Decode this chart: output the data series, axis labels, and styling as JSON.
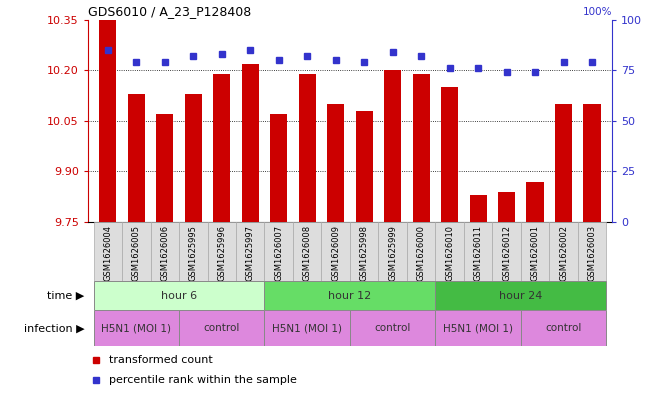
{
  "title": "GDS6010 / A_23_P128408",
  "samples": [
    "GSM1626004",
    "GSM1626005",
    "GSM1626006",
    "GSM1625995",
    "GSM1625996",
    "GSM1625997",
    "GSM1626007",
    "GSM1626008",
    "GSM1626009",
    "GSM1625998",
    "GSM1625999",
    "GSM1626000",
    "GSM1626010",
    "GSM1626011",
    "GSM1626012",
    "GSM1626001",
    "GSM1626002",
    "GSM1626003"
  ],
  "transformed_count": [
    10.35,
    10.13,
    10.07,
    10.13,
    10.19,
    10.22,
    10.07,
    10.19,
    10.1,
    10.08,
    10.2,
    10.19,
    10.15,
    9.83,
    9.84,
    9.87,
    10.1,
    10.1
  ],
  "percentile_rank": [
    85,
    79,
    79,
    82,
    83,
    85,
    80,
    82,
    80,
    79,
    84,
    82,
    76,
    76,
    74,
    74,
    79,
    79
  ],
  "y_min": 9.75,
  "y_max": 10.35,
  "y_ticks": [
    9.75,
    9.9,
    10.05,
    10.2,
    10.35
  ],
  "y2_ticks": [
    0,
    25,
    50,
    75,
    100
  ],
  "bar_color": "#cc0000",
  "dot_color": "#3333cc",
  "bar_width": 0.6,
  "time_groups": [
    {
      "label": "hour 6",
      "start": 0,
      "end": 6,
      "color": "#ccffcc"
    },
    {
      "label": "hour 12",
      "start": 6,
      "end": 12,
      "color": "#66dd66"
    },
    {
      "label": "hour 24",
      "start": 12,
      "end": 18,
      "color": "#44bb44"
    }
  ],
  "infection_groups": [
    {
      "label": "H5N1 (MOI 1)",
      "start": 0,
      "end": 3,
      "color": "#dd88dd"
    },
    {
      "label": "control",
      "start": 3,
      "end": 6,
      "color": "#dd88dd"
    },
    {
      "label": "H5N1 (MOI 1)",
      "start": 6,
      "end": 9,
      "color": "#dd88dd"
    },
    {
      "label": "control",
      "start": 9,
      "end": 12,
      "color": "#dd88dd"
    },
    {
      "label": "H5N1 (MOI 1)",
      "start": 12,
      "end": 15,
      "color": "#dd88dd"
    },
    {
      "label": "control",
      "start": 15,
      "end": 18,
      "color": "#dd88dd"
    }
  ],
  "time_row_label": "time",
  "infection_row_label": "infection",
  "legend_transformed": "transformed count",
  "legend_percentile": "percentile rank within the sample",
  "axis_color_left": "#cc0000",
  "axis_color_right": "#3333cc",
  "background_color": "#ffffff",
  "grid_color": "#888888",
  "sample_bg_color": "#dddddd"
}
